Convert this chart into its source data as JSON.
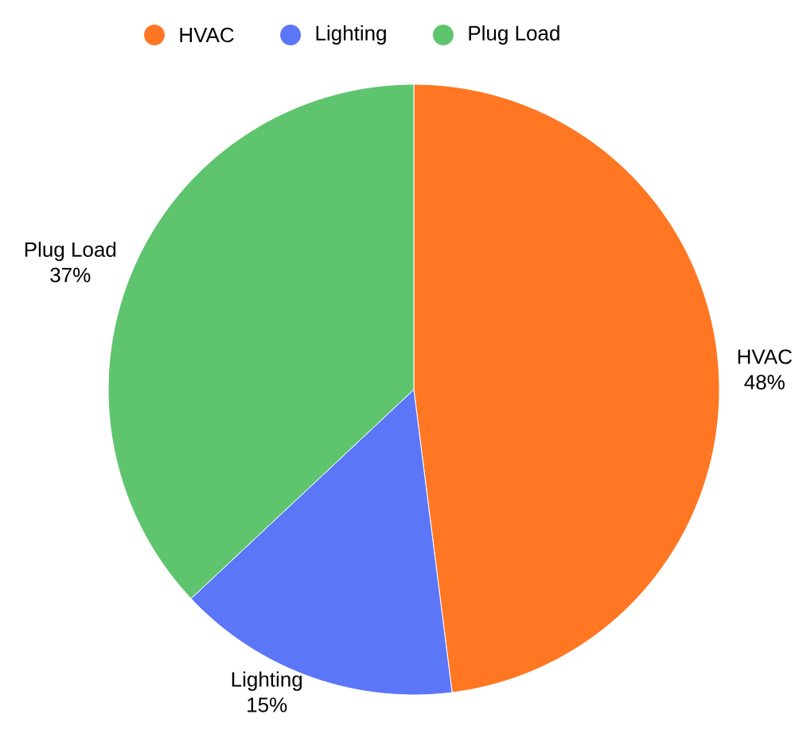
{
  "chart_data": {
    "type": "pie",
    "categories": [
      "HVAC",
      "Lighting",
      "Plug Load"
    ],
    "values": [
      48,
      15,
      37
    ],
    "value_labels": [
      "48%",
      "15%",
      "37%"
    ],
    "colors": [
      "#ff7722",
      "#5b76f7",
      "#5fc46e"
    ],
    "legend": "top"
  }
}
